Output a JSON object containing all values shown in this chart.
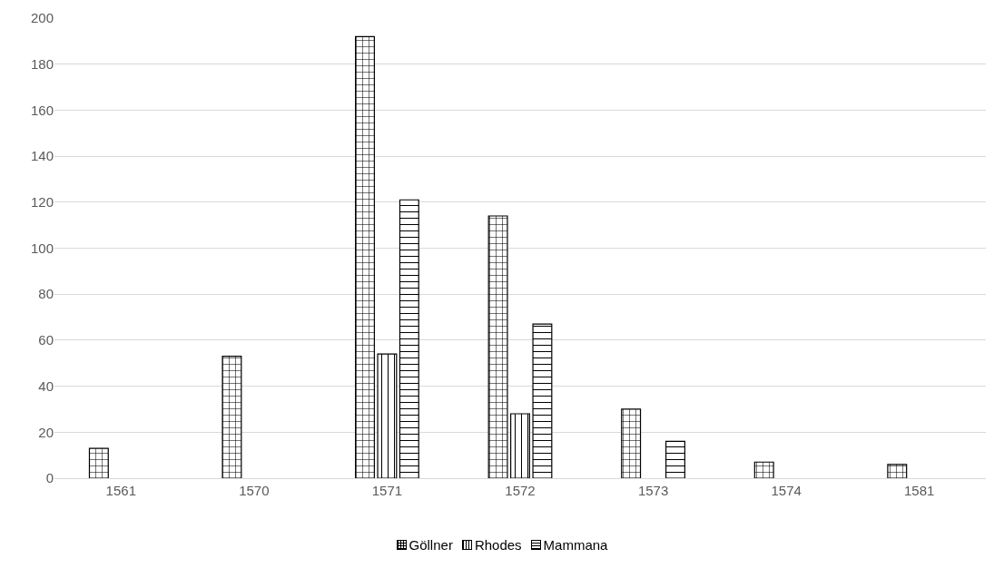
{
  "chart_data": {
    "type": "bar",
    "categories": [
      "1561",
      "1570",
      "1571",
      "1572",
      "1573",
      "1574",
      "1581"
    ],
    "series": [
      {
        "name": "Göllner",
        "color": "#000000",
        "values": [
          13,
          53,
          192,
          114,
          30,
          7,
          6
        ]
      },
      {
        "name": "Rhodes",
        "color": "#000000",
        "values": [
          null,
          null,
          54,
          28,
          null,
          null,
          null
        ]
      },
      {
        "name": "Mammana",
        "color": "#000000",
        "values": [
          null,
          null,
          121,
          67,
          16,
          null,
          null
        ]
      }
    ],
    "ylim": [
      0,
      200
    ],
    "yticks": [
      0,
      20,
      40,
      60,
      80,
      100,
      120,
      140,
      160,
      180,
      200
    ],
    "grid": "y",
    "legend": "bottom"
  }
}
